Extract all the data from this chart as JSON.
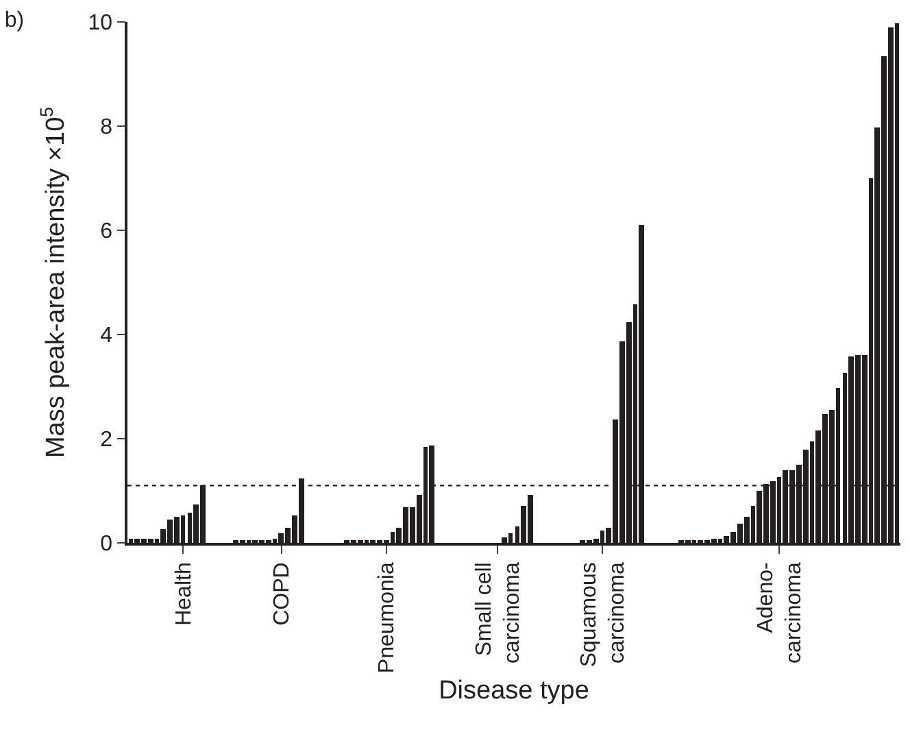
{
  "chart_data": {
    "type": "bar",
    "title": "b)",
    "xlabel": "Disease type",
    "ylabel": "Mass peak-area intensity ×10$^{5}$",
    "categories": [
      null,
      null,
      null,
      null,
      null,
      null,
      null,
      null,
      "Health",
      null,
      null,
      null,
      null,
      null,
      null,
      null,
      null,
      null,
      null,
      null,
      null,
      null,
      null,
      "COPD",
      null,
      null,
      null,
      null,
      null,
      null,
      null,
      null,
      null,
      null,
      null,
      null,
      null,
      null,
      null,
      "Pneumonia",
      null,
      null,
      null,
      null,
      null,
      null,
      null,
      null,
      null,
      null,
      null,
      null,
      null,
      null,
      null,
      null,
      "Small cell\ncarcinoma",
      null,
      null,
      null,
      null,
      null,
      null,
      null,
      null,
      null,
      null,
      null,
      null,
      null,
      null,
      null,
      "Squamous\ncarcinoma",
      null,
      null,
      null,
      null,
      null,
      null,
      null,
      null,
      null,
      null,
      null,
      null,
      null,
      null,
      null,
      null,
      null,
      null,
      null,
      null,
      null,
      null,
      null,
      null,
      null,
      null,
      "Adeno-\ncarcinoma",
      null,
      null,
      null,
      null,
      null,
      null,
      null,
      null,
      null,
      null,
      null,
      null,
      null,
      null,
      null,
      null,
      null,
      null
    ],
    "values": [
      0.07,
      0.07,
      0.07,
      0.07,
      0.07,
      0.26,
      0.46,
      0.5,
      0.53,
      0.59,
      0.73,
      1.1,
      null,
      null,
      null,
      null,
      0.05,
      0.05,
      0.05,
      0.05,
      0.05,
      0.05,
      0.08,
      0.18,
      0.28,
      0.53,
      1.25,
      null,
      null,
      null,
      null,
      null,
      null,
      0.05,
      0.05,
      0.05,
      0.05,
      0.05,
      0.05,
      0.05,
      0.21,
      0.28,
      0.68,
      0.68,
      0.93,
      1.84,
      1.87,
      null,
      null,
      null,
      null,
      null,
      null,
      null,
      null,
      null,
      null,
      0.1,
      0.19,
      0.31,
      0.7,
      0.91,
      null,
      null,
      null,
      null,
      null,
      null,
      null,
      0.05,
      0.05,
      0.08,
      0.25,
      0.28,
      2.37,
      3.86,
      4.25,
      4.58,
      6.1,
      null,
      null,
      null,
      null,
      null,
      0.04,
      0.04,
      0.05,
      0.06,
      0.04,
      0.09,
      0.09,
      0.13,
      0.22,
      0.36,
      0.5,
      0.7,
      0.99,
      1.12,
      1.19,
      1.27,
      1.39,
      1.39,
      1.5,
      1.78,
      1.96,
      2.15,
      2.47,
      2.54,
      2.98,
      3.26,
      3.57,
      3.61,
      3.61,
      7.01,
      7.98,
      9.35,
      9.89,
      9.98
    ],
    "color": "#231f20",
    "ylim": [
      0,
      10
    ],
    "yticks": [
      0,
      2,
      4,
      6,
      8,
      10
    ],
    "ref_lines": [
      {
        "axis": "y",
        "value": 1.1,
        "color": "#231f20",
        "line_style": "dotted"
      }
    ]
  }
}
